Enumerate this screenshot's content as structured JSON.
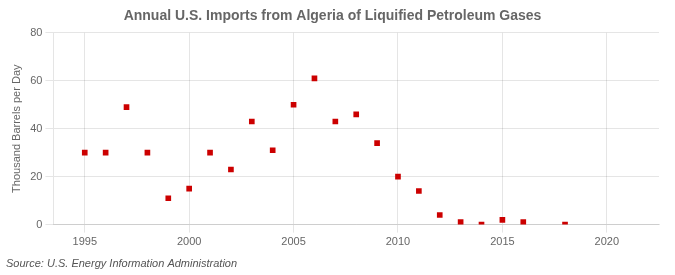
{
  "chart_data": {
    "type": "scatter",
    "title": "Annual U.S. Imports from Algeria of Liquified Petroleum Gases",
    "ylabel": "Thousand Barrels per Day",
    "annotations": [
      "Source: U.S. Energy Information Administration"
    ],
    "x": [
      1995,
      1996,
      1997,
      1998,
      1999,
      2000,
      2001,
      2002,
      2003,
      2004,
      2005,
      2006,
      2007,
      2008,
      2009,
      2010,
      2011,
      2012,
      2013,
      2014,
      2015,
      2016,
      2018
    ],
    "values": [
      30,
      30,
      49,
      30,
      11,
      15,
      30,
      23,
      43,
      31,
      50,
      61,
      43,
      46,
      34,
      20,
      14,
      4,
      1,
      0,
      2,
      1,
      0
    ],
    "color": "#cc0000",
    "marker": "square",
    "xlim": [
      1993.5,
      2022.5
    ],
    "xticks": [
      1995,
      2000,
      2005,
      2010,
      2015,
      2020
    ],
    "ylim": [
      0,
      80
    ],
    "yticks": [
      0,
      20,
      40,
      60,
      80
    ],
    "grid": true
  }
}
